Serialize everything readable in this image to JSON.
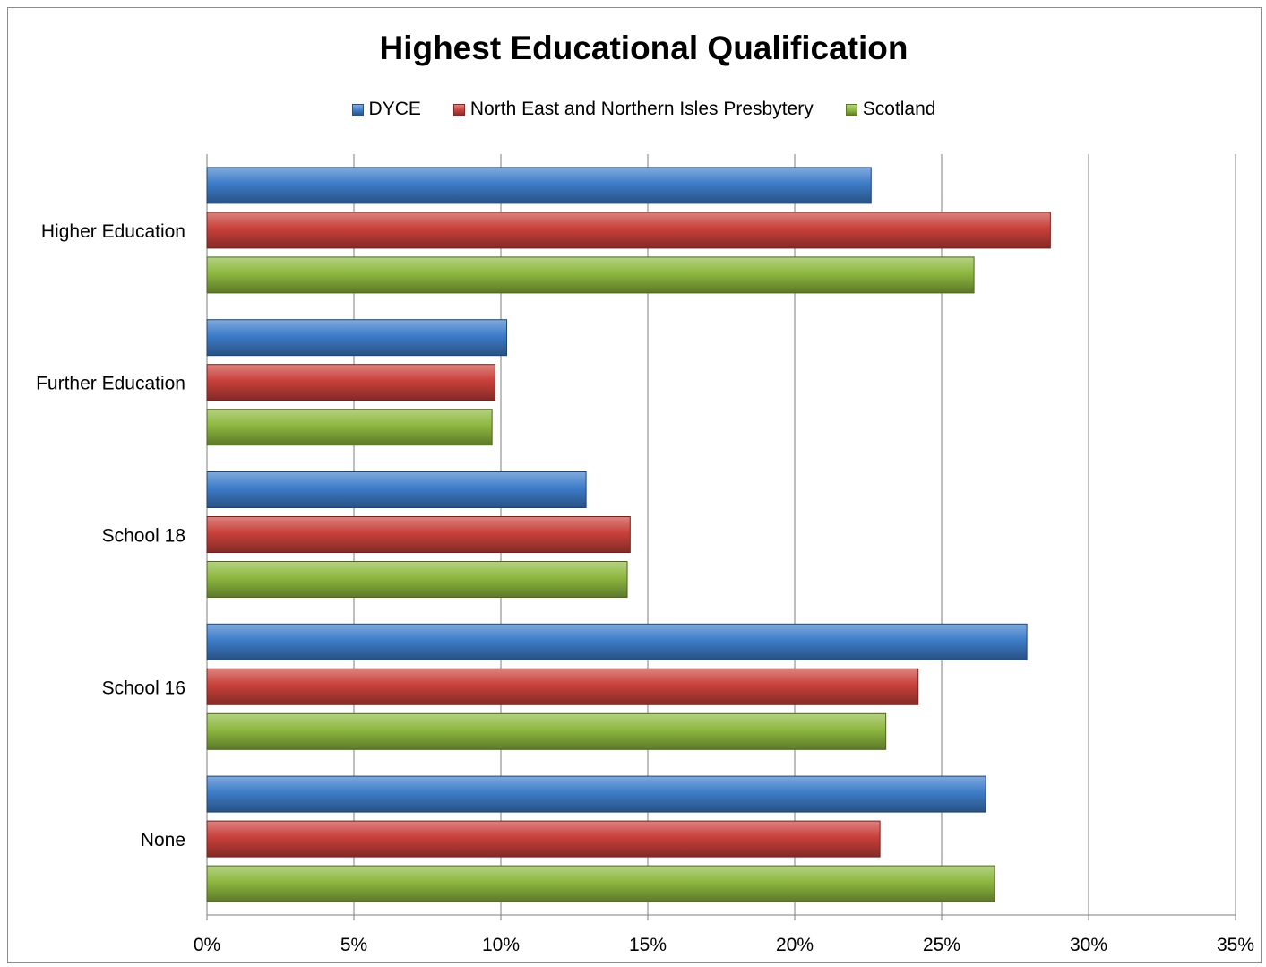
{
  "chart_data": {
    "type": "bar",
    "orientation": "horizontal",
    "title": "Highest Educational Qualification",
    "categories": [
      "Higher Education",
      "Further Education",
      "School 18",
      "School 16",
      "None"
    ],
    "series": [
      {
        "name": "DYCE",
        "color": "#3d7cc9",
        "values": [
          22.6,
          10.2,
          12.9,
          27.9,
          26.5
        ]
      },
      {
        "name": "North East and Northern Isles Presbytery",
        "color": "#c9403a",
        "values": [
          28.7,
          9.8,
          14.4,
          24.2,
          22.9
        ]
      },
      {
        "name": "Scotland",
        "color": "#8db83f",
        "values": [
          26.1,
          9.7,
          14.3,
          23.1,
          26.8
        ]
      }
    ],
    "x_ticks": [
      "0%",
      "5%",
      "10%",
      "15%",
      "20%",
      "25%",
      "30%",
      "35%"
    ],
    "xlim": [
      0,
      35
    ],
    "xlabel": "",
    "ylabel": "",
    "grid": "vertical",
    "legend": "top"
  }
}
